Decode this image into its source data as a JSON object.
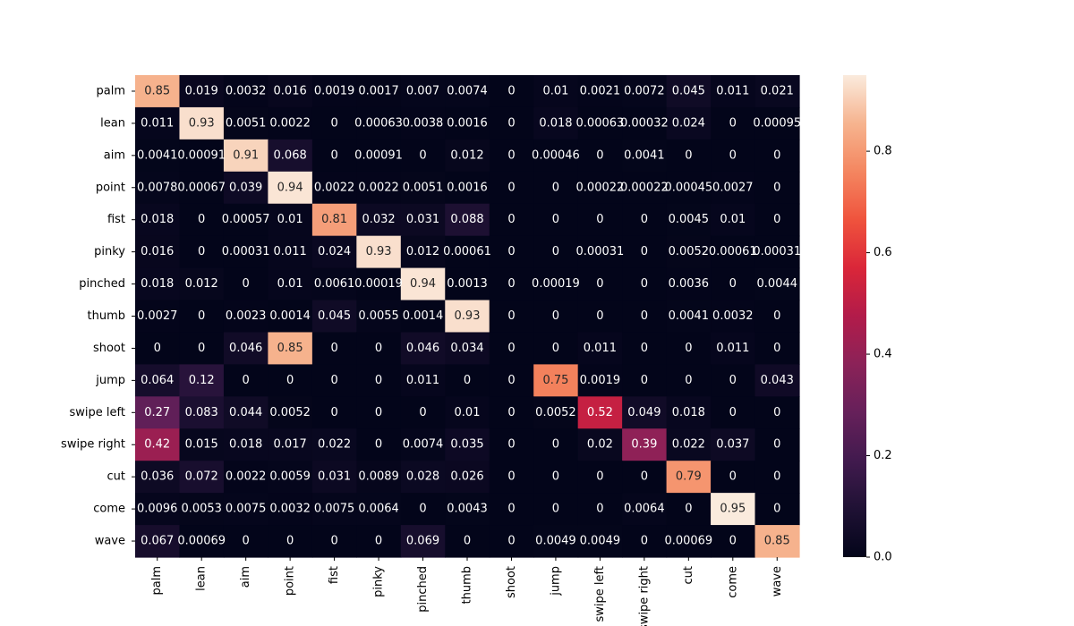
{
  "chart_data": {
    "type": "heatmap",
    "title": "",
    "xlabel": "",
    "ylabel": "",
    "x_categories": [
      "palm",
      "lean",
      "aim",
      "point",
      "fist",
      "pinky",
      "pinched",
      "thumb",
      "shoot",
      "jump",
      "swipe left",
      "swipe right",
      "cut",
      "come",
      "wave"
    ],
    "y_categories": [
      "palm",
      "lean",
      "aim",
      "point",
      "fist",
      "pinky",
      "pinched",
      "thumb",
      "shoot",
      "jump",
      "swipe left",
      "swipe right",
      "cut",
      "come",
      "wave"
    ],
    "values": [
      [
        0.85,
        0.019,
        0.0032,
        0.016,
        0.0019,
        0.0017,
        0.007,
        0.0074,
        0,
        0.01,
        0.0021,
        0.0072,
        0.045,
        0.011,
        0.021
      ],
      [
        0.011,
        0.93,
        0.0051,
        0.0022,
        0,
        0.00063,
        0.0038,
        0.0016,
        0,
        0.018,
        0.00063,
        0.00032,
        0.024,
        0,
        0.00095
      ],
      [
        0.0041,
        0.00091,
        0.91,
        0.068,
        0,
        0.00091,
        0,
        0.012,
        0,
        0.00046,
        0,
        0.0041,
        0,
        0,
        0
      ],
      [
        0.0078,
        0.00067,
        0.039,
        0.94,
        0.0022,
        0.0022,
        0.0051,
        0.0016,
        0,
        0,
        0.00022,
        0.00022,
        0.00045,
        0.0027,
        0
      ],
      [
        0.018,
        0,
        0.00057,
        0.01,
        0.81,
        0.032,
        0.031,
        0.088,
        0,
        0,
        0,
        0,
        0.0045,
        0.01,
        0
      ],
      [
        0.016,
        0,
        0.00031,
        0.011,
        0.024,
        0.93,
        0.012,
        0.00061,
        0,
        0,
        0.00031,
        0,
        0.0052,
        0.00061,
        0.00031
      ],
      [
        0.018,
        0.012,
        0,
        0.01,
        0.0061,
        0.00019,
        0.94,
        0.0013,
        0,
        0.00019,
        0,
        0,
        0.0036,
        0,
        0.0044
      ],
      [
        0.0027,
        0,
        0.0023,
        0.0014,
        0.045,
        0.0055,
        0.0014,
        0.93,
        0,
        0,
        0,
        0,
        0.0041,
        0.0032,
        0
      ],
      [
        0,
        0,
        0.046,
        0.85,
        0,
        0,
        0.046,
        0.034,
        0,
        0,
        0.011,
        0,
        0,
        0.011,
        0
      ],
      [
        0.064,
        0.12,
        0,
        0,
        0,
        0,
        0.011,
        0,
        0,
        0.75,
        0.0019,
        0,
        0,
        0,
        0.043
      ],
      [
        0.27,
        0.083,
        0.044,
        0.0052,
        0,
        0,
        0,
        0.01,
        0,
        0.0052,
        0.52,
        0.049,
        0.018,
        0,
        0
      ],
      [
        0.42,
        0.015,
        0.018,
        0.017,
        0.022,
        0,
        0.0074,
        0.035,
        0,
        0,
        0.02,
        0.39,
        0.022,
        0.037,
        0
      ],
      [
        0.036,
        0.072,
        0.0022,
        0.0059,
        0.031,
        0.0089,
        0.028,
        0.026,
        0,
        0,
        0,
        0,
        0.79,
        0,
        0
      ],
      [
        0.0096,
        0.0053,
        0.0075,
        0.0032,
        0.0075,
        0.0064,
        0,
        0.0043,
        0,
        0,
        0,
        0.0064,
        0,
        0.95,
        0
      ],
      [
        0.067,
        0.00069,
        0,
        0,
        0,
        0,
        0.069,
        0,
        0,
        0.0049,
        0.0049,
        0,
        0.00069,
        0,
        0.85
      ]
    ],
    "colorbar": {
      "ticks": [
        0.0,
        0.2,
        0.4,
        0.6,
        0.8
      ],
      "tick_labels": [
        "0.0",
        "0.2",
        "0.4",
        "0.6",
        "0.8"
      ],
      "range": [
        0,
        0.95
      ],
      "colormap": "rocket"
    },
    "annotated": true,
    "grid": false,
    "legend": "colorbar-right"
  }
}
